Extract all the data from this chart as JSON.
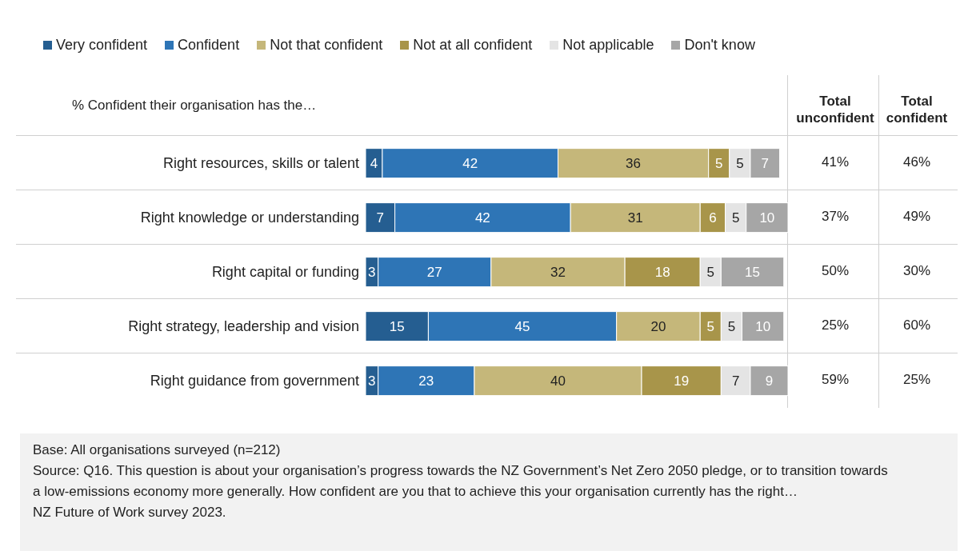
{
  "chart_data": {
    "type": "bar",
    "orientation": "horizontal",
    "stacked": true,
    "data_labels": true,
    "legend": "top",
    "subtitle": "% Confident their organisation has the…",
    "categories": [
      "Right resources, skills or talent",
      "Right knowledge or understanding",
      "Right capital or funding",
      "Right strategy, leadership and vision",
      "Right guidance from government"
    ],
    "series": [
      {
        "name": "Very confident",
        "color": "#255e91",
        "values": [
          4,
          7,
          3,
          15,
          3
        ]
      },
      {
        "name": "Confident",
        "color": "#2e75b6",
        "values": [
          42,
          42,
          27,
          45,
          23
        ]
      },
      {
        "name": "Not that confident",
        "color": "#c5b77a",
        "values": [
          36,
          31,
          32,
          20,
          40
        ]
      },
      {
        "name": "Not at all confident",
        "color": "#a8954a",
        "values": [
          5,
          6,
          18,
          5,
          19
        ]
      },
      {
        "name": "Not applicable",
        "color": "#e4e4e4",
        "values": [
          5,
          5,
          5,
          5,
          7
        ]
      },
      {
        "name": "Don't know",
        "color": "#a6a6a6",
        "values": [
          7,
          10,
          15,
          10,
          9
        ]
      }
    ],
    "annotations": [
      "Total unconfident",
      "Total confident",
      "41%",
      "46%",
      "37%",
      "49%",
      "50%",
      "30%",
      "25%",
      "60%",
      "59%",
      "25%",
      "Base: All organisations surveyed (n=212)",
      "Source: Q16. This question is about your organisation’s progress towards the NZ Government’s Net Zero 2050 pledge, or to transition towards a low-emissions economy more generally. How confident are you that to achieve this your organisation currently has the right…",
      "NZ Future of Work survey 2023."
    ]
  }
}
